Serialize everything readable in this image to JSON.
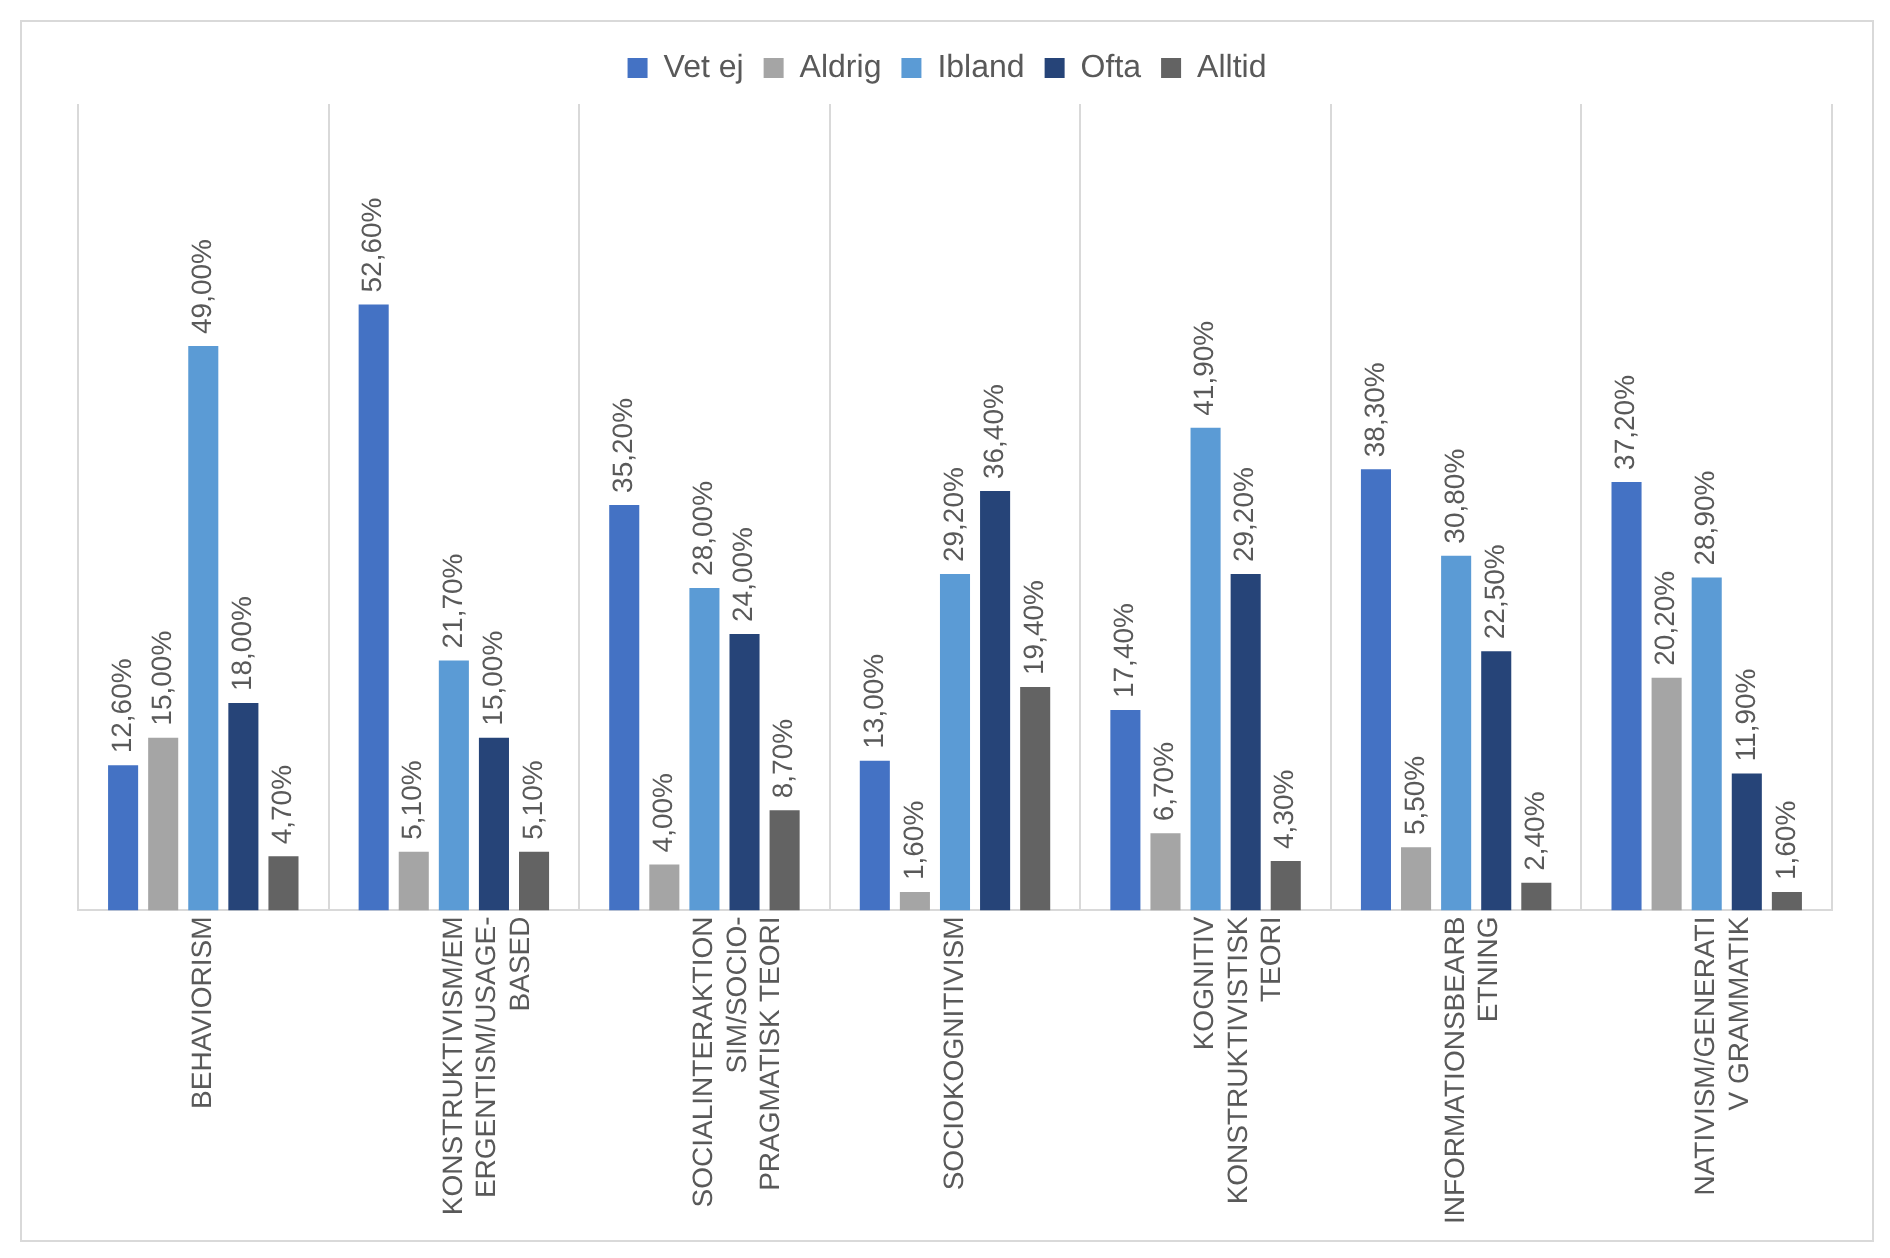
{
  "chart_data": {
    "type": "bar",
    "categories": [
      "BEHAVIORISM",
      "KONSTRUKTIVISM/EMERGENTISM/USAGE-BASED",
      "SOCIALINTERAKTIONSIM/SOCIO-PRAGMATISK TEORI",
      "SOCIOKOGNITIVISM",
      "KOGNITIV KONSTRUKTIVISTISK TEORI",
      "INFORMATIONSBEARBETNING",
      "NATIVISM/GENERATIV GRAMMATIK"
    ],
    "series": [
      {
        "name": "Vet ej",
        "color": "#4472c4",
        "values": [
          12.6,
          52.6,
          35.2,
          13.0,
          17.4,
          38.3,
          37.2
        ],
        "value_labels": [
          "12,60%",
          "52,60%",
          "35,20%",
          "13,00%",
          "17,40%",
          "38,30%",
          "37,20%"
        ]
      },
      {
        "name": "Aldrig",
        "color": "#a5a5a5",
        "values": [
          15.0,
          5.1,
          4.0,
          1.6,
          6.7,
          5.5,
          20.2
        ],
        "value_labels": [
          "15,00%",
          "5,10%",
          "4,00%",
          "1,60%",
          "6,70%",
          "5,50%",
          "20,20%"
        ]
      },
      {
        "name": "Ibland",
        "color": "#5b9bd5",
        "values": [
          49.0,
          21.7,
          28.0,
          29.2,
          41.9,
          30.8,
          28.9
        ],
        "value_labels": [
          "49,00%",
          "21,70%",
          "28,00%",
          "29,20%",
          "41,90%",
          "30,80%",
          "28,90%"
        ]
      },
      {
        "name": "Ofta",
        "color": "#264478",
        "values": [
          18.0,
          15.0,
          24.0,
          36.4,
          29.2,
          22.5,
          11.9
        ],
        "value_labels": [
          "18,00%",
          "15,00%",
          "24,00%",
          "36,40%",
          "29,20%",
          "22,50%",
          "11,90%"
        ]
      },
      {
        "name": "Alltid",
        "color": "#636363",
        "values": [
          4.7,
          5.1,
          8.7,
          19.4,
          4.3,
          2.4,
          1.6
        ],
        "value_labels": [
          "4,70%",
          "5,10%",
          "8,70%",
          "19,40%",
          "4,30%",
          "2,40%",
          "1,60%"
        ]
      }
    ],
    "grid": "x",
    "legend": "top",
    "tick_labels": "x"
  }
}
